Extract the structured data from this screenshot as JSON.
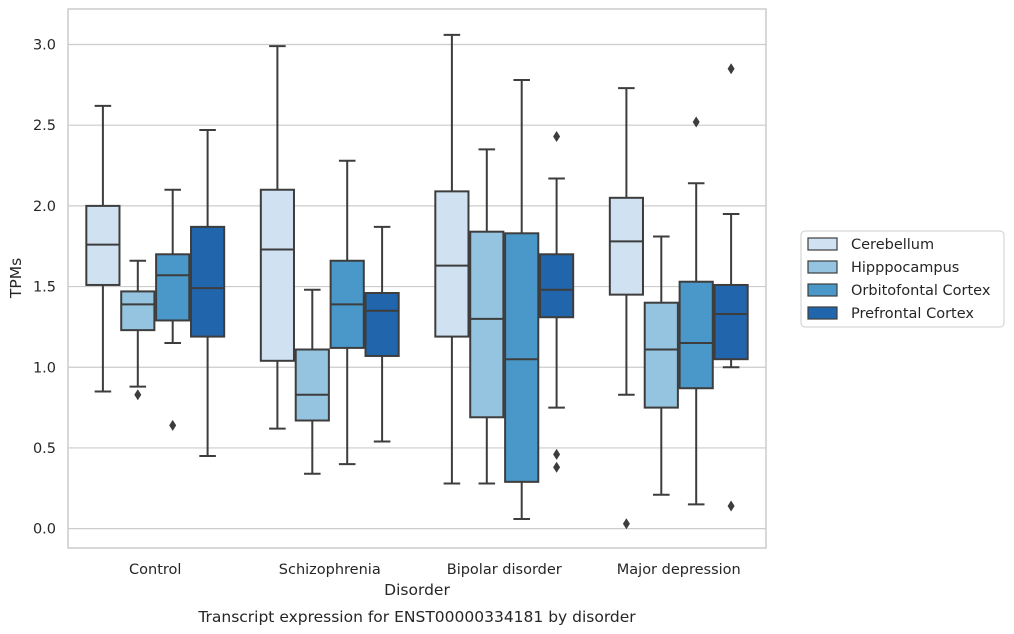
{
  "chart_data": {
    "type": "box",
    "caption": "Transcript expression for ENST00000334181 by disorder",
    "xlabel": "Disorder",
    "ylabel": "TPMs",
    "ylim": [
      -0.12,
      3.22
    ],
    "yticks": [
      "0.0",
      "0.5",
      "1.0",
      "1.5",
      "2.0",
      "2.5",
      "3.0"
    ],
    "grid": "horizontal",
    "legend_position": "right",
    "categories": [
      "Control",
      "Schizophrenia",
      "Bipolar disorder",
      "Major depression"
    ],
    "series": [
      {
        "name": "Cerebellum",
        "color": "#d0e1f2",
        "boxes": [
          {
            "whislo": 0.85,
            "q1": 1.51,
            "med": 1.76,
            "q3": 2.0,
            "whishi": 2.62,
            "fliers": []
          },
          {
            "whislo": 0.62,
            "q1": 1.04,
            "med": 1.73,
            "q3": 2.1,
            "whishi": 2.99,
            "fliers": []
          },
          {
            "whislo": 0.28,
            "q1": 1.19,
            "med": 1.63,
            "q3": 2.09,
            "whishi": 3.06,
            "fliers": []
          },
          {
            "whislo": 0.83,
            "q1": 1.45,
            "med": 1.78,
            "q3": 2.05,
            "whishi": 2.73,
            "fliers": [
              0.03
            ]
          }
        ]
      },
      {
        "name": "Hipppocampus",
        "color": "#94c4df",
        "boxes": [
          {
            "whislo": 0.88,
            "q1": 1.23,
            "med": 1.39,
            "q3": 1.47,
            "whishi": 1.66,
            "fliers": [
              0.83
            ]
          },
          {
            "whislo": 0.34,
            "q1": 0.67,
            "med": 0.83,
            "q3": 1.11,
            "whishi": 1.48,
            "fliers": []
          },
          {
            "whislo": 0.28,
            "q1": 0.69,
            "med": 1.3,
            "q3": 1.84,
            "whishi": 2.35,
            "fliers": []
          },
          {
            "whislo": 0.21,
            "q1": 0.75,
            "med": 1.11,
            "q3": 1.4,
            "whishi": 1.81,
            "fliers": []
          }
        ]
      },
      {
        "name": "Orbitofontal Cortex",
        "color": "#4a98c9",
        "boxes": [
          {
            "whislo": 1.15,
            "q1": 1.29,
            "med": 1.57,
            "q3": 1.7,
            "whishi": 2.1,
            "fliers": [
              0.64
            ]
          },
          {
            "whislo": 0.4,
            "q1": 1.12,
            "med": 1.39,
            "q3": 1.66,
            "whishi": 2.28,
            "fliers": []
          },
          {
            "whislo": 0.06,
            "q1": 0.29,
            "med": 1.05,
            "q3": 1.83,
            "whishi": 2.78,
            "fliers": []
          },
          {
            "whislo": 0.15,
            "q1": 0.87,
            "med": 1.15,
            "q3": 1.53,
            "whishi": 2.14,
            "fliers": [
              2.52
            ]
          }
        ]
      },
      {
        "name": "Prefrontal Cortex",
        "color": "#2166ac",
        "boxes": [
          {
            "whislo": 0.45,
            "q1": 1.19,
            "med": 1.49,
            "q3": 1.87,
            "whishi": 2.47,
            "fliers": []
          },
          {
            "whislo": 0.54,
            "q1": 1.07,
            "med": 1.35,
            "q3": 1.46,
            "whishi": 1.87,
            "fliers": []
          },
          {
            "whislo": 0.75,
            "q1": 1.31,
            "med": 1.48,
            "q3": 1.7,
            "whishi": 2.17,
            "fliers": [
              2.43,
              0.46,
              0.38
            ]
          },
          {
            "whislo": 1.0,
            "q1": 1.05,
            "med": 1.33,
            "q3": 1.51,
            "whishi": 1.95,
            "fliers": [
              2.85,
              0.14
            ]
          }
        ]
      }
    ]
  }
}
